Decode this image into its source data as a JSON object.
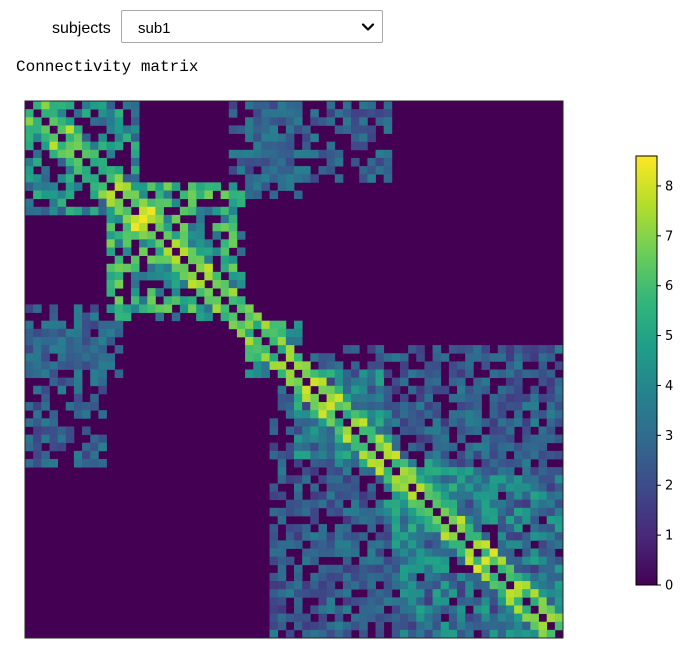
{
  "controls": {
    "subjects_label": "subjects",
    "selected_subject": "sub1",
    "options": [
      "sub1"
    ]
  },
  "figure": {
    "output_label": "Connectivity matrix"
  },
  "colors": {
    "viridis": [
      "#440154",
      "#482878",
      "#3e4989",
      "#31688e",
      "#26828e",
      "#1f9e89",
      "#35b779",
      "#6ece58",
      "#b5de2b",
      "#fde725"
    ]
  },
  "chart_data": {
    "type": "heatmap",
    "title": "",
    "xlabel": "",
    "ylabel": "",
    "n": 66,
    "symmetric": true,
    "colormap": "viridis",
    "vmin": 0,
    "vmax": 8.6,
    "colorbar_ticks": [
      0,
      1,
      2,
      3,
      4,
      5,
      6,
      7,
      8
    ],
    "blocks": [
      {
        "rows": [
          0,
          14
        ],
        "cols": [
          0,
          14
        ],
        "level": 4.5
      },
      {
        "rows": [
          10,
          27
        ],
        "cols": [
          10,
          27
        ],
        "level": 5.5
      },
      {
        "rows": [
          27,
          34
        ],
        "cols": [
          27,
          34
        ],
        "level": 5
      },
      {
        "rows": [
          33,
          45
        ],
        "cols": [
          33,
          45
        ],
        "level": 4.5
      },
      {
        "rows": [
          44,
          53
        ],
        "cols": [
          44,
          53
        ],
        "level": 4.5
      },
      {
        "rows": [
          45,
          66
        ],
        "cols": [
          45,
          66
        ],
        "level": 4
      },
      {
        "rows": [
          28,
          45
        ],
        "cols": [
          0,
          10
        ],
        "level": 3
      },
      {
        "rows": [
          0,
          10
        ],
        "cols": [
          27,
          45
        ],
        "level": 3
      },
      {
        "rows": [
          32,
          66
        ],
        "cols": [
          30,
          45
        ],
        "level": 3
      },
      {
        "rows": [
          40,
          66
        ],
        "cols": [
          30,
          66
        ],
        "level": 2.5
      },
      {
        "rows": [
          0,
          12
        ],
        "cols": [
          27,
          34
        ],
        "level": 3
      },
      {
        "rows": [
          25,
          33
        ],
        "cols": [
          0,
          12
        ],
        "level": 3
      }
    ],
    "peaks": [
      {
        "i": 14,
        "j": 14,
        "value": 8.4
      },
      {
        "i": 37,
        "j": 37,
        "value": 8
      },
      {
        "i": 56,
        "j": 56,
        "value": 8.2
      },
      {
        "i": 60,
        "j": 60,
        "value": 7.5
      },
      {
        "i": 46,
        "j": 46,
        "value": 7
      },
      {
        "i": 27,
        "j": 27,
        "value": 7
      },
      {
        "i": 5,
        "j": 5,
        "value": 6.5
      }
    ]
  }
}
